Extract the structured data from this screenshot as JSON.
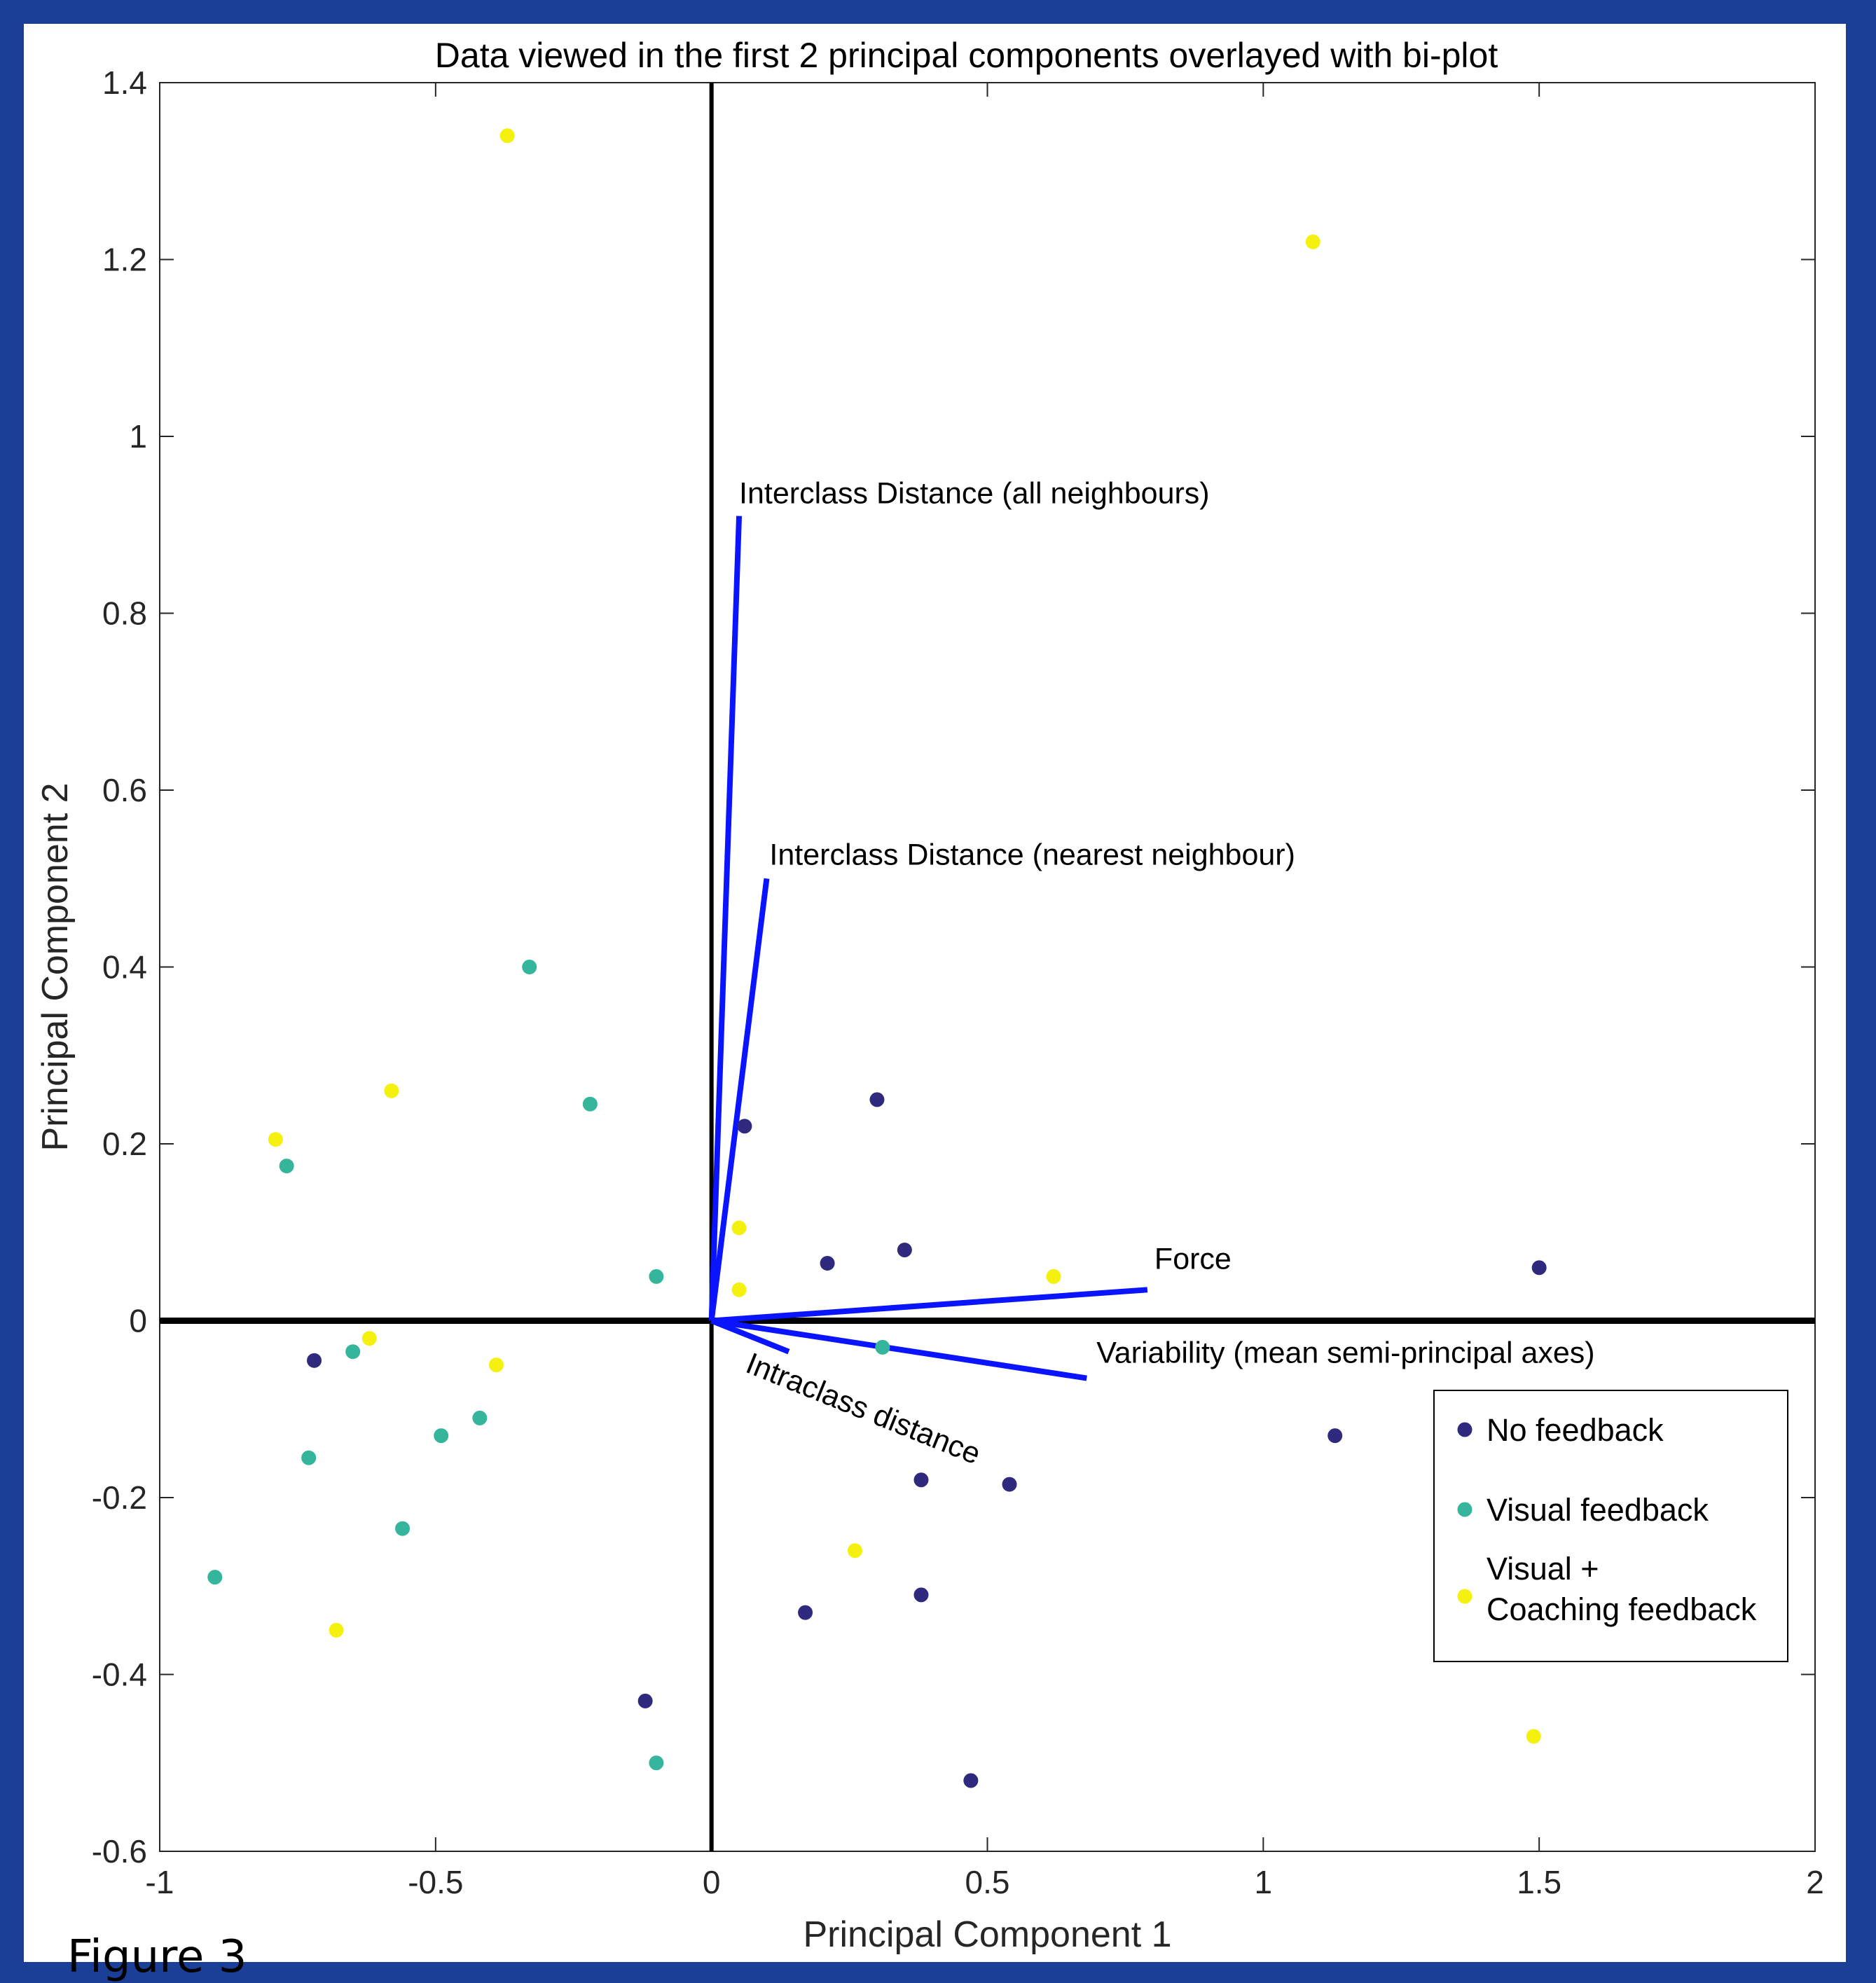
{
  "chart_data": {
    "type": "scatter",
    "title": "Data viewed in the first 2 principal components overlayed with bi-plot",
    "xlabel": "Principal Component 1",
    "ylabel": "Principal Component 2",
    "xlim": [
      -1,
      2
    ],
    "ylim": [
      -0.6,
      1.4
    ],
    "xticks": [
      -1,
      -0.5,
      0,
      0.5,
      1,
      1.5,
      2
    ],
    "xtick_labels": [
      "-1",
      "-0.5",
      "0",
      "0.5",
      "1",
      "1.5",
      "2"
    ],
    "yticks": [
      -0.6,
      -0.4,
      -0.2,
      0,
      0.2,
      0.4,
      0.6,
      0.8,
      1,
      1.2,
      1.4
    ],
    "ytick_labels": [
      "-0.6",
      "-0.4",
      "-0.2",
      "0",
      "0.2",
      "0.4",
      "0.6",
      "0.8",
      "1",
      "1.2",
      "1.4"
    ],
    "grid": false,
    "legend_position": "lower-right",
    "series": [
      {
        "name": "No feedback",
        "color": "#2f2a7e",
        "points": [
          [
            0.06,
            0.22
          ],
          [
            0.3,
            0.25
          ],
          [
            0.21,
            0.065
          ],
          [
            0.35,
            0.08
          ],
          [
            1.5,
            0.06
          ],
          [
            -0.72,
            -0.045
          ],
          [
            1.13,
            -0.13
          ],
          [
            0.38,
            -0.18
          ],
          [
            0.54,
            -0.185
          ],
          [
            0.17,
            -0.33
          ],
          [
            0.38,
            -0.31
          ],
          [
            -0.12,
            -0.43
          ],
          [
            0.47,
            -0.52
          ]
        ]
      },
      {
        "name": "Visual feedback",
        "color": "#35b69c",
        "points": [
          [
            -0.33,
            0.4
          ],
          [
            -0.22,
            0.245
          ],
          [
            -0.77,
            0.175
          ],
          [
            -0.1,
            0.05
          ],
          [
            -0.65,
            -0.035
          ],
          [
            0.31,
            -0.03
          ],
          [
            -0.42,
            -0.11
          ],
          [
            -0.49,
            -0.13
          ],
          [
            -0.73,
            -0.155
          ],
          [
            -0.56,
            -0.235
          ],
          [
            -0.9,
            -0.29
          ],
          [
            -0.1,
            -0.5
          ]
        ]
      },
      {
        "name": "Visual +\nCoaching feedback",
        "color": "#f4f10e",
        "points": [
          [
            -0.37,
            1.34
          ],
          [
            1.09,
            1.22
          ],
          [
            -0.58,
            0.26
          ],
          [
            -0.79,
            0.205
          ],
          [
            0.05,
            0.105
          ],
          [
            0.05,
            0.035
          ],
          [
            0.62,
            0.05
          ],
          [
            -0.62,
            -0.02
          ],
          [
            -0.39,
            -0.05
          ],
          [
            0.26,
            -0.26
          ],
          [
            -0.68,
            -0.35
          ],
          [
            1.49,
            -0.47
          ]
        ]
      }
    ],
    "biplot_vectors": [
      {
        "label": "Interclass Distance (all neighbours)",
        "x": 0.05,
        "y": 0.91,
        "color": "#0a14ff"
      },
      {
        "label": "Interclass Distance (nearest neighbour)",
        "x": 0.1,
        "y": 0.5,
        "color": "#0a14ff"
      },
      {
        "label": "Force",
        "x": 0.79,
        "y": 0.035,
        "color": "#0a14ff"
      },
      {
        "label": "Variability (mean semi-principal axes)",
        "x": 0.68,
        "y": -0.065,
        "color": "#0a14ff"
      },
      {
        "label": "Intraclass distance",
        "x": 0.14,
        "y": -0.035,
        "color": "#0a14ff"
      }
    ]
  },
  "figure_caption": "Figure 3",
  "colors": {
    "page_background": "#1b3f96",
    "panel_background": "#ffffff",
    "vector_color": "#0a14ff"
  }
}
